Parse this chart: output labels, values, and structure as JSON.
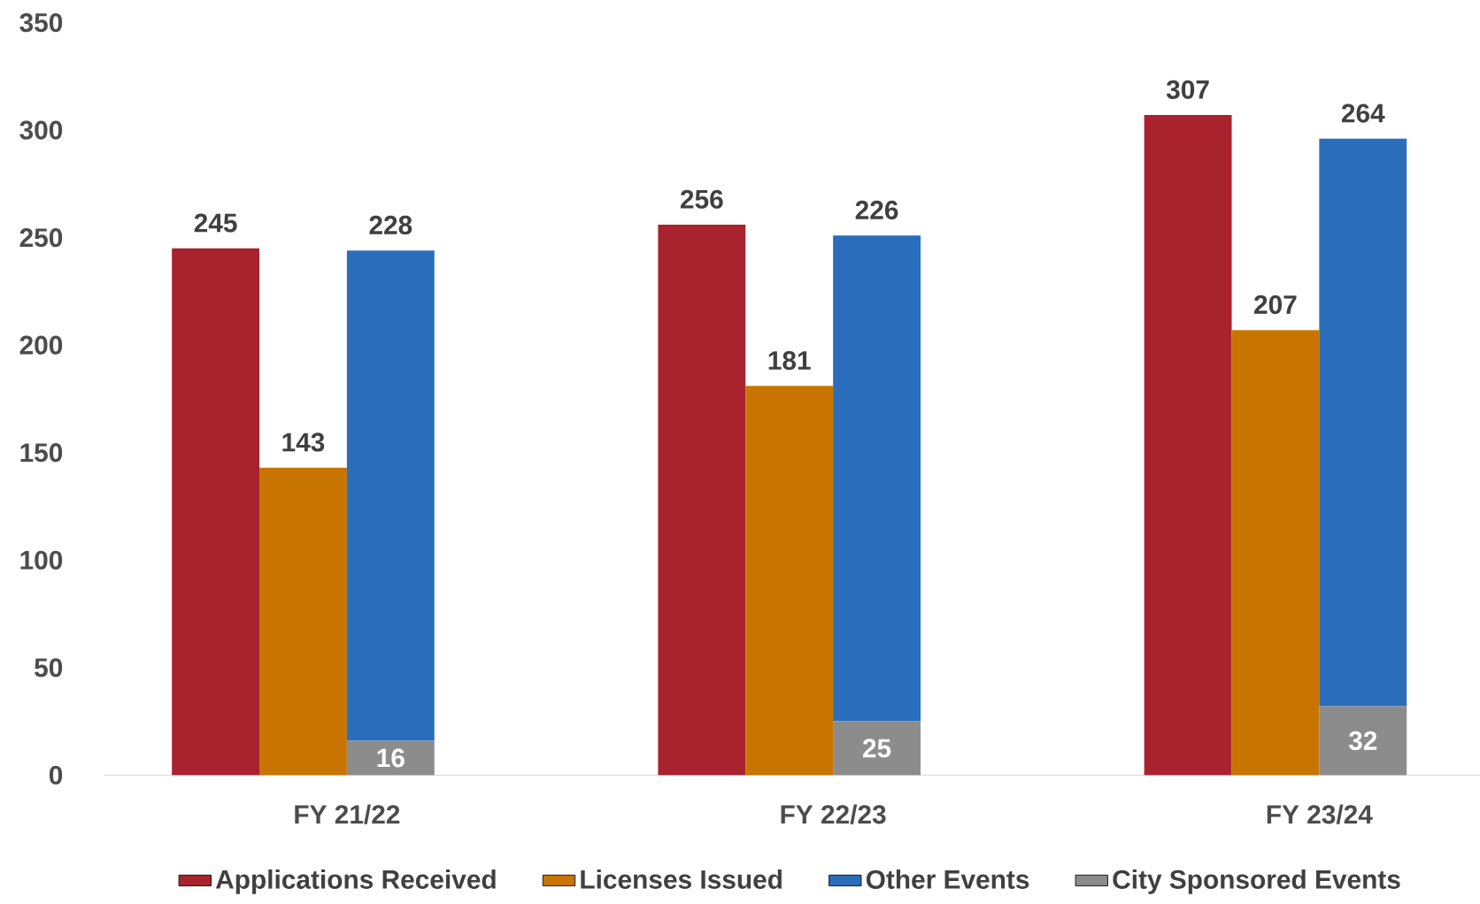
{
  "chart_data": {
    "type": "bar",
    "categories": [
      "FY 21/22",
      "FY 22/23",
      "FY 23/24"
    ],
    "series": [
      {
        "name": "Applications Received",
        "color": "#a8232d",
        "values": [
          245,
          256,
          307
        ]
      },
      {
        "name": "Licenses Issued",
        "color": "#c87400",
        "values": [
          143,
          181,
          207
        ]
      },
      {
        "name": "Other Events",
        "color": "#2a6ebb",
        "values": [
          228,
          226,
          264
        ],
        "base": [
          16,
          25,
          32
        ]
      },
      {
        "name": "City Sponsored Events",
        "color": "#8c8c8c",
        "values": [
          16,
          25,
          32
        ],
        "base": [
          0,
          0,
          0
        ]
      }
    ],
    "ylim": [
      0,
      350
    ],
    "yticks": [
      0,
      50,
      100,
      150,
      200,
      250,
      300,
      350
    ],
    "data_labels": true,
    "grid": false,
    "legend": "bottom"
  }
}
